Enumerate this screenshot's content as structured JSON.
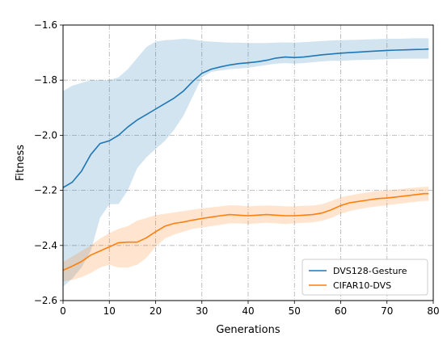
{
  "chart_data": {
    "type": "line",
    "xlabel": "Generations",
    "ylabel": "Fitness",
    "xlim": [
      0,
      80
    ],
    "ylim": [
      -2.6,
      -1.6
    ],
    "xticks": [
      0,
      10,
      20,
      30,
      40,
      50,
      60,
      70,
      80
    ],
    "yticks": [
      -2.6,
      -2.4,
      -2.2,
      -2.0,
      -1.8,
      -1.6
    ],
    "grid": true,
    "legend_position": "lower-right",
    "series": [
      {
        "name": "DVS128-Gesture",
        "color": "#1f77b4",
        "x": [
          0,
          2,
          4,
          6,
          8,
          10,
          12,
          14,
          16,
          18,
          20,
          22,
          24,
          26,
          28,
          30,
          32,
          34,
          36,
          38,
          40,
          42,
          44,
          46,
          48,
          50,
          52,
          54,
          56,
          58,
          60,
          62,
          64,
          66,
          68,
          70,
          72,
          74,
          76,
          78,
          79
        ],
        "y": [
          -2.19,
          -2.17,
          -2.13,
          -2.07,
          -2.03,
          -2.02,
          -2.0,
          -1.97,
          -1.945,
          -1.925,
          -1.905,
          -1.885,
          -1.865,
          -1.84,
          -1.805,
          -1.775,
          -1.76,
          -1.752,
          -1.745,
          -1.74,
          -1.737,
          -1.733,
          -1.728,
          -1.72,
          -1.716,
          -1.718,
          -1.716,
          -1.712,
          -1.708,
          -1.705,
          -1.702,
          -1.7,
          -1.698,
          -1.696,
          -1.694,
          -1.692,
          -1.691,
          -1.69,
          -1.689,
          -1.688,
          -1.687
        ],
        "lower": [
          -2.55,
          -2.52,
          -2.48,
          -2.42,
          -2.3,
          -2.25,
          -2.25,
          -2.2,
          -2.12,
          -2.08,
          -2.05,
          -2.02,
          -1.98,
          -1.93,
          -1.86,
          -1.79,
          -1.77,
          -1.765,
          -1.76,
          -1.758,
          -1.755,
          -1.75,
          -1.745,
          -1.74,
          -1.738,
          -1.74,
          -1.738,
          -1.735,
          -1.732,
          -1.73,
          -1.73,
          -1.728,
          -1.727,
          -1.726,
          -1.725,
          -1.724,
          -1.723,
          -1.722,
          -1.722,
          -1.722,
          -1.722
        ],
        "upper": [
          -1.84,
          -1.82,
          -1.81,
          -1.8,
          -1.8,
          -1.8,
          -1.79,
          -1.76,
          -1.72,
          -1.68,
          -1.66,
          -1.655,
          -1.653,
          -1.65,
          -1.652,
          -1.658,
          -1.66,
          -1.662,
          -1.664,
          -1.664,
          -1.665,
          -1.665,
          -1.665,
          -1.664,
          -1.663,
          -1.664,
          -1.662,
          -1.66,
          -1.658,
          -1.656,
          -1.655,
          -1.654,
          -1.653,
          -1.652,
          -1.651,
          -1.65,
          -1.65,
          -1.649,
          -1.648,
          -1.648,
          -1.648
        ]
      },
      {
        "name": "CIFAR10-DVS",
        "color": "#ff7f0e",
        "x": [
          0,
          2,
          4,
          6,
          8,
          10,
          12,
          14,
          16,
          18,
          20,
          22,
          24,
          26,
          28,
          30,
          32,
          34,
          36,
          38,
          40,
          42,
          44,
          46,
          48,
          50,
          52,
          54,
          56,
          58,
          60,
          62,
          64,
          66,
          68,
          70,
          72,
          74,
          76,
          78,
          79
        ],
        "y": [
          -2.49,
          -2.475,
          -2.458,
          -2.435,
          -2.42,
          -2.405,
          -2.39,
          -2.388,
          -2.388,
          -2.372,
          -2.35,
          -2.33,
          -2.32,
          -2.315,
          -2.308,
          -2.302,
          -2.297,
          -2.292,
          -2.288,
          -2.29,
          -2.292,
          -2.29,
          -2.288,
          -2.29,
          -2.292,
          -2.292,
          -2.29,
          -2.288,
          -2.282,
          -2.27,
          -2.255,
          -2.245,
          -2.24,
          -2.235,
          -2.23,
          -2.228,
          -2.224,
          -2.22,
          -2.216,
          -2.212,
          -2.212
        ],
        "lower": [
          -2.53,
          -2.525,
          -2.515,
          -2.5,
          -2.48,
          -2.47,
          -2.48,
          -2.48,
          -2.47,
          -2.445,
          -2.405,
          -2.375,
          -2.36,
          -2.35,
          -2.34,
          -2.335,
          -2.33,
          -2.325,
          -2.32,
          -2.32,
          -2.322,
          -2.32,
          -2.318,
          -2.32,
          -2.322,
          -2.32,
          -2.318,
          -2.316,
          -2.31,
          -2.3,
          -2.285,
          -2.275,
          -2.268,
          -2.262,
          -2.258,
          -2.254,
          -2.25,
          -2.246,
          -2.242,
          -2.238,
          -2.238
        ],
        "upper": [
          -2.46,
          -2.44,
          -2.42,
          -2.4,
          -2.375,
          -2.355,
          -2.34,
          -2.33,
          -2.31,
          -2.3,
          -2.29,
          -2.285,
          -2.28,
          -2.275,
          -2.27,
          -2.265,
          -2.262,
          -2.258,
          -2.254,
          -2.255,
          -2.258,
          -2.256,
          -2.255,
          -2.256,
          -2.258,
          -2.258,
          -2.256,
          -2.255,
          -2.25,
          -2.238,
          -2.225,
          -2.218,
          -2.212,
          -2.207,
          -2.202,
          -2.2,
          -2.197,
          -2.193,
          -2.19,
          -2.187,
          -2.187
        ]
      }
    ]
  }
}
